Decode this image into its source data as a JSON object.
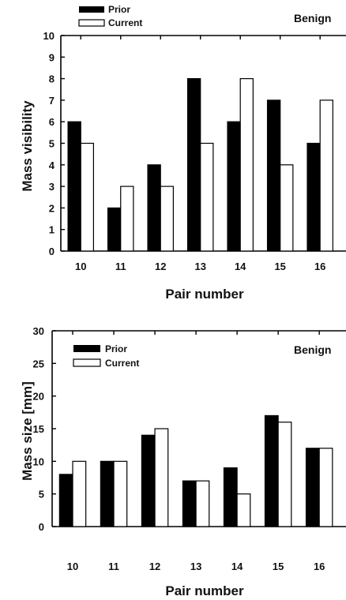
{
  "chart_data": [
    {
      "type": "bar",
      "panel_label": "Benign",
      "xlabel": "Pair number",
      "ylabel": "Mass visibility",
      "ylim": [
        0,
        10
      ],
      "y_ticks": [
        "0",
        "1",
        "2",
        "3",
        "4",
        "5",
        "6",
        "7",
        "8",
        "9",
        "10"
      ],
      "categories": [
        "10",
        "11",
        "12",
        "13",
        "14",
        "15",
        "16"
      ],
      "series": [
        {
          "name": "Prior",
          "color": "#000000",
          "values": [
            6,
            2,
            4,
            8,
            6,
            7,
            5
          ]
        },
        {
          "name": "Current",
          "color": "#ffffff",
          "values": [
            5,
            3,
            3,
            5,
            8,
            4,
            7
          ]
        }
      ],
      "legend_position": "top-left",
      "grid": false
    },
    {
      "type": "bar",
      "panel_label": "Benign",
      "xlabel": "Pair number",
      "ylabel": "Mass size [mm]",
      "ylim": [
        0,
        30
      ],
      "y_ticks": [
        "0",
        "5",
        "10",
        "15",
        "20",
        "25",
        "30"
      ],
      "categories": [
        "10",
        "11",
        "12",
        "13",
        "14",
        "15",
        "16"
      ],
      "series": [
        {
          "name": "Prior",
          "color": "#000000",
          "values": [
            8,
            10,
            14,
            7,
            9,
            17,
            12
          ]
        },
        {
          "name": "Current",
          "color": "#ffffff",
          "values": [
            10,
            10,
            15,
            7,
            5,
            16,
            12
          ]
        }
      ],
      "legend_position": "top-left",
      "grid": false
    }
  ]
}
